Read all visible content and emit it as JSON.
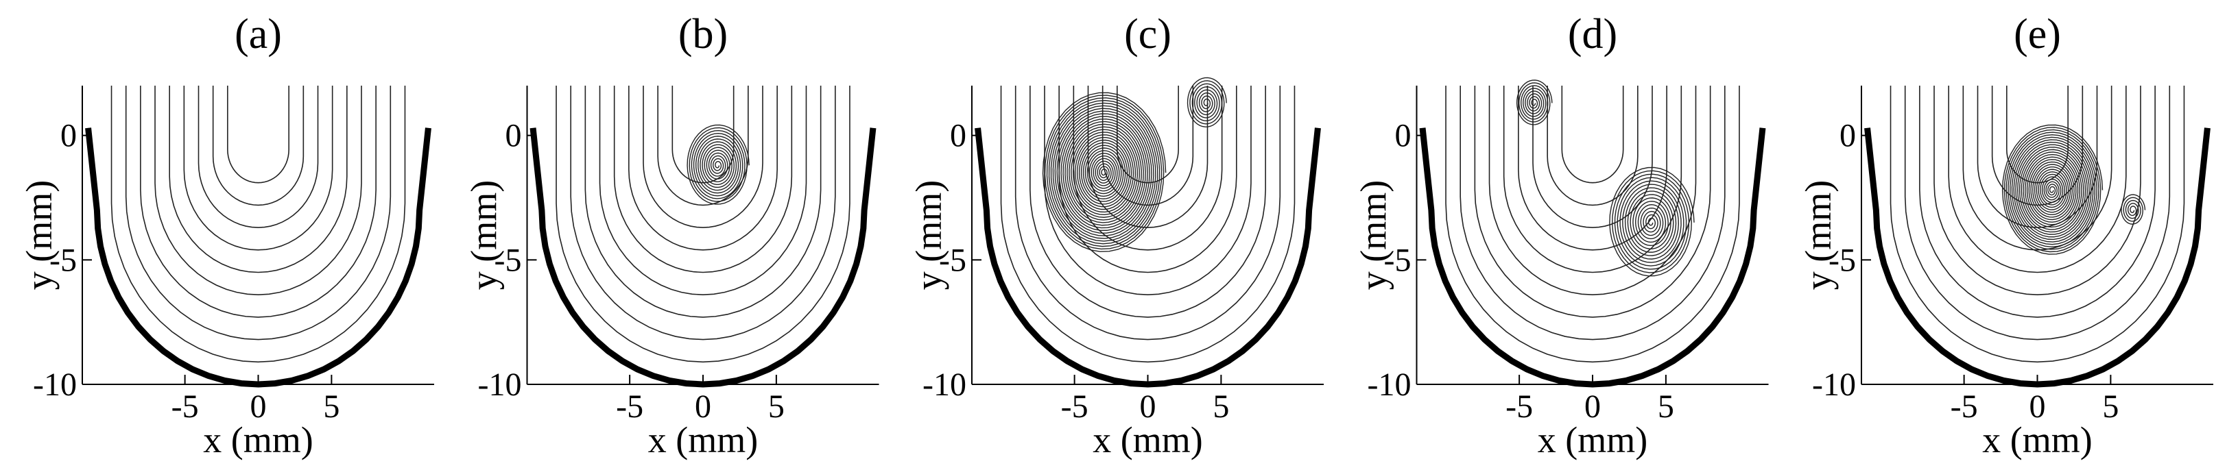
{
  "chart_data": [
    {
      "type": "streamline",
      "title": "(a)",
      "xlabel": "x (mm)",
      "ylabel": "y (mm)",
      "xlim": [
        -12,
        12
      ],
      "ylim": [
        -10,
        2
      ],
      "xticks": [
        -5,
        0,
        5
      ],
      "yticks": [
        -10,
        -5,
        0
      ]
    },
    {
      "type": "streamline",
      "title": "(b)",
      "xlabel": "x (mm)",
      "ylabel": "y (mm)",
      "xlim": [
        -12,
        12
      ],
      "ylim": [
        -10,
        2
      ],
      "xticks": [
        -5,
        0,
        5
      ],
      "yticks": [
        -10,
        -5,
        0
      ]
    },
    {
      "type": "streamline",
      "title": "(c)",
      "xlabel": "x (mm)",
      "ylabel": "y (mm)",
      "xlim": [
        -12,
        12
      ],
      "ylim": [
        -10,
        2
      ],
      "xticks": [
        -5,
        0,
        5
      ],
      "yticks": [
        -10,
        -5,
        0
      ]
    },
    {
      "type": "streamline",
      "title": "(d)",
      "xlabel": "x (mm)",
      "ylabel": "y (mm)",
      "xlim": [
        -12,
        12
      ],
      "ylim": [
        -10,
        2
      ],
      "xticks": [
        -5,
        0,
        5
      ],
      "yticks": [
        -10,
        -5,
        0
      ]
    },
    {
      "type": "streamline",
      "title": "(e)",
      "xlabel": "x (mm)",
      "ylabel": "y (mm)",
      "xlim": [
        -12,
        12
      ],
      "ylim": [
        -10,
        2
      ],
      "xticks": [
        -5,
        0,
        5
      ],
      "yticks": [
        -10,
        -5,
        0
      ]
    }
  ]
}
